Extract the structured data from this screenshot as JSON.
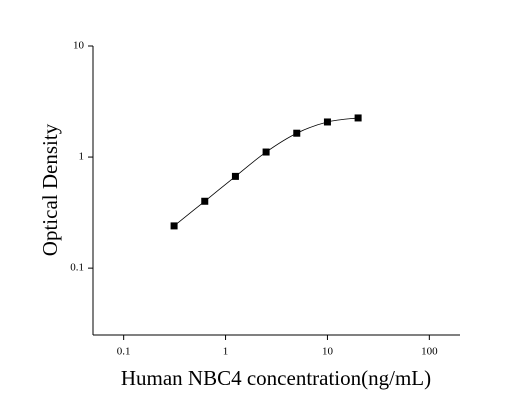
{
  "chart_data": {
    "type": "scatter",
    "x_label": "Human NBC4 concentration(ng/mL)",
    "y_label": "Optical Density",
    "x_log": true,
    "y_log": true,
    "xlim": [
      0.05,
      200
    ],
    "ylim": [
      0.025,
      10
    ],
    "xticks": [
      0.1,
      1,
      10,
      100
    ],
    "yticks": [
      0.1,
      1,
      10
    ],
    "fit_curve": true,
    "series": [
      {
        "color": "#000000",
        "x": [
          0.3125,
          0.625,
          1.25,
          2.5,
          5,
          10,
          20
        ],
        "values": [
          0.24,
          0.4,
          0.67,
          1.11,
          1.64,
          2.07,
          2.25
        ]
      }
    ]
  }
}
